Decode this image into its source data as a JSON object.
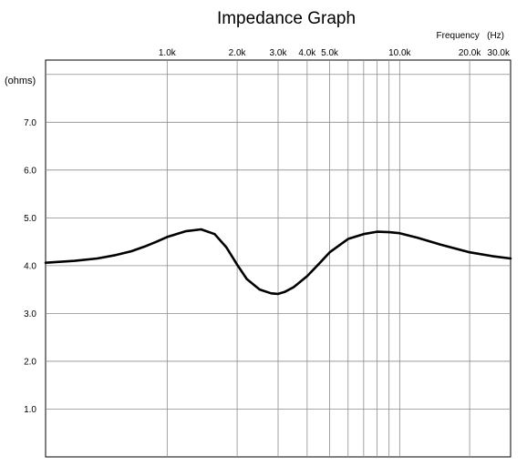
{
  "chart_data": {
    "type": "line",
    "title": "Impedance Graph",
    "xlabel": "Frequency   (Hz)",
    "ylabel": "(ohms)",
    "x_scale": "log",
    "xlim": [
      300,
      30000
    ],
    "ylim": [
      0,
      8.3
    ],
    "grid": true,
    "x_tick_labels": [
      {
        "value": 1000,
        "label": "1.0k"
      },
      {
        "value": 2000,
        "label": "2.0k"
      },
      {
        "value": 3000,
        "label": "3.0k"
      },
      {
        "value": 4000,
        "label": "4.0k"
      },
      {
        "value": 5000,
        "label": "5.0k"
      },
      {
        "value": 10000,
        "label": "10.0k"
      },
      {
        "value": 20000,
        "label": "20.0k"
      },
      {
        "value": 30000,
        "label": "30.0k"
      }
    ],
    "x_minor_gridlines": [
      6000,
      7000,
      8000,
      9000
    ],
    "y_ticks": [
      {
        "value": 1,
        "label": "1.0"
      },
      {
        "value": 2,
        "label": "2.0"
      },
      {
        "value": 3,
        "label": "3.0"
      },
      {
        "value": 4,
        "label": "4.0"
      },
      {
        "value": 5,
        "label": "5.0"
      },
      {
        "value": 6,
        "label": "6.0"
      },
      {
        "value": 7,
        "label": "7.0"
      },
      {
        "value": 8,
        "label": ""
      }
    ],
    "series": [
      {
        "x": [
          300,
          400,
          500,
          600,
          700,
          800,
          900,
          1000,
          1200,
          1400,
          1600,
          1800,
          2000,
          2200,
          2500,
          2800,
          3000,
          3200,
          3500,
          4000,
          4500,
          5000,
          6000,
          7000,
          8000,
          9000,
          10000,
          12000,
          15000,
          20000,
          25000,
          30000
        ],
        "y": [
          4.06,
          4.1,
          4.15,
          4.22,
          4.3,
          4.4,
          4.5,
          4.6,
          4.72,
          4.76,
          4.66,
          4.38,
          4.02,
          3.72,
          3.5,
          3.42,
          3.41,
          3.45,
          3.55,
          3.78,
          4.04,
          4.28,
          4.56,
          4.66,
          4.71,
          4.7,
          4.68,
          4.58,
          4.44,
          4.28,
          4.2,
          4.15
        ],
        "color": "#000000"
      }
    ]
  }
}
